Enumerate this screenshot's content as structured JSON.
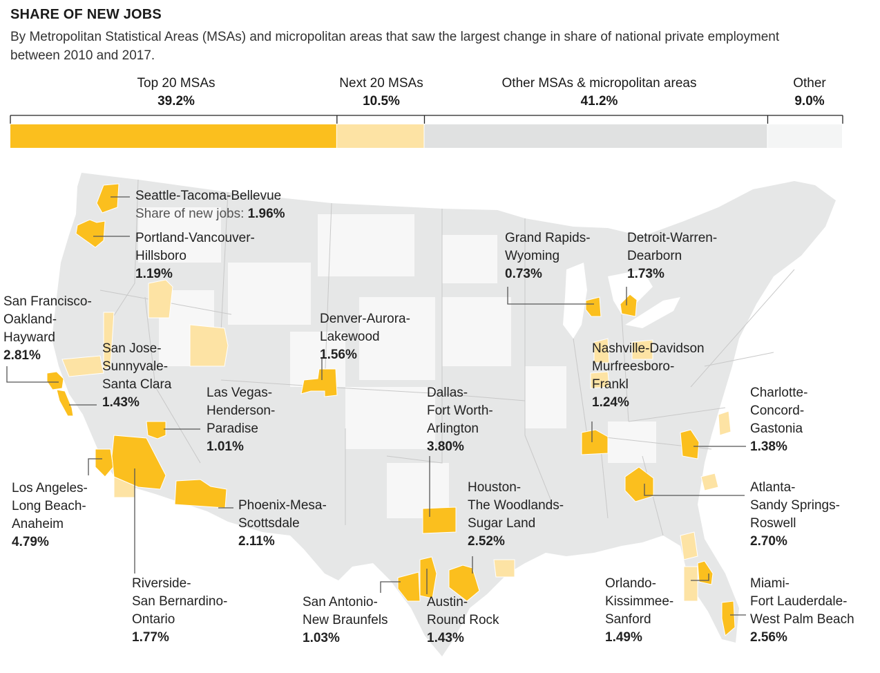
{
  "header": {
    "title": "SHARE OF NEW JOBS",
    "subtitle": "By Metropolitan Statistical Areas (MSAs) and micropolitan areas that saw the largest change in share of national private employment between 2010 and 2017."
  },
  "colors": {
    "top20": "#fbbf1e",
    "next20": "#fde3a4",
    "other_msas": "#e0e1e1",
    "other": "#f4f5f5",
    "map_land": "#e6e7e7",
    "map_light": "#f5f5f5",
    "leader": "#555555"
  },
  "chart_data": {
    "type": "stacked-bar",
    "title": "SHARE OF NEW JOBS",
    "categories": [
      "Top 20 MSAs",
      "Next 20 MSAs",
      "Other MSAs & micropolitan areas",
      "Other"
    ],
    "values": [
      39.2,
      10.5,
      41.2,
      9.0
    ],
    "value_labels": [
      "39.2%",
      "10.5%",
      "41.2%",
      "9.0%"
    ],
    "unit": "%"
  },
  "map": {
    "share_prefix": "Share of new jobs:",
    "msas": [
      {
        "id": "seattle",
        "name": [
          "Seattle-Tacoma-Bellevue"
        ],
        "share": "1.96%",
        "tier": "top20"
      },
      {
        "id": "portland",
        "name": [
          "Portland-Vancouver-",
          "Hillsboro"
        ],
        "share": "1.19%",
        "tier": "top20"
      },
      {
        "id": "sf",
        "name": [
          "San Francisco-",
          "Oakland-",
          "Hayward"
        ],
        "share": "2.81%",
        "tier": "top20"
      },
      {
        "id": "sanjose",
        "name": [
          "San Jose-",
          "Sunnyvale-",
          "Santa Clara"
        ],
        "share": "1.43%",
        "tier": "top20"
      },
      {
        "id": "lasvegas",
        "name": [
          "Las Vegas-",
          "Henderson-",
          "Paradise"
        ],
        "share": "1.01%",
        "tier": "top20"
      },
      {
        "id": "la",
        "name": [
          "Los Angeles-",
          "Long Beach-",
          "Anaheim"
        ],
        "share": "4.79%",
        "tier": "top20"
      },
      {
        "id": "riverside",
        "name": [
          "Riverside-",
          "San Bernardino-",
          "Ontario"
        ],
        "share": "1.77%",
        "tier": "top20"
      },
      {
        "id": "phoenix",
        "name": [
          "Phoenix-Mesa-",
          "Scottsdale"
        ],
        "share": "2.11%",
        "tier": "top20"
      },
      {
        "id": "denver",
        "name": [
          "Denver-Aurora-",
          "Lakewood"
        ],
        "share": "1.56%",
        "tier": "top20"
      },
      {
        "id": "dallas",
        "name": [
          "Dallas-",
          "Fort Worth-",
          "Arlington"
        ],
        "share": "3.80%",
        "tier": "top20"
      },
      {
        "id": "houston",
        "name": [
          "Houston-",
          "The Woodlands-",
          "Sugar Land"
        ],
        "share": "2.52%",
        "tier": "top20"
      },
      {
        "id": "sanantonio",
        "name": [
          "San Antonio-",
          "New Braunfels"
        ],
        "share": "1.03%",
        "tier": "top20"
      },
      {
        "id": "austin",
        "name": [
          "Austin-",
          "Round Rock"
        ],
        "share": "1.43%",
        "tier": "top20"
      },
      {
        "id": "grandrapids",
        "name": [
          "Grand Rapids-",
          "Wyoming"
        ],
        "share": "0.73%",
        "tier": "top20"
      },
      {
        "id": "detroit",
        "name": [
          "Detroit-Warren-",
          "Dearborn"
        ],
        "share": "1.73%",
        "tier": "top20"
      },
      {
        "id": "nashville",
        "name": [
          "Nashville-Davidson",
          "Murfreesboro-",
          "Frankl"
        ],
        "share": "1.24%",
        "tier": "top20"
      },
      {
        "id": "charlotte",
        "name": [
          "Charlotte-",
          "Concord-",
          "Gastonia"
        ],
        "share": "1.38%",
        "tier": "top20"
      },
      {
        "id": "atlanta",
        "name": [
          "Atlanta-",
          "Sandy Springs-",
          "Roswell"
        ],
        "share": "2.70%",
        "tier": "top20"
      },
      {
        "id": "orlando",
        "name": [
          "Orlando-",
          "Kissimmee-",
          "Sanford"
        ],
        "share": "1.49%",
        "tier": "top20"
      },
      {
        "id": "miami",
        "name": [
          "Miami-",
          "Fort Lauderdale-",
          "West Palm Beach"
        ],
        "share": "2.56%",
        "tier": "top20"
      }
    ]
  }
}
